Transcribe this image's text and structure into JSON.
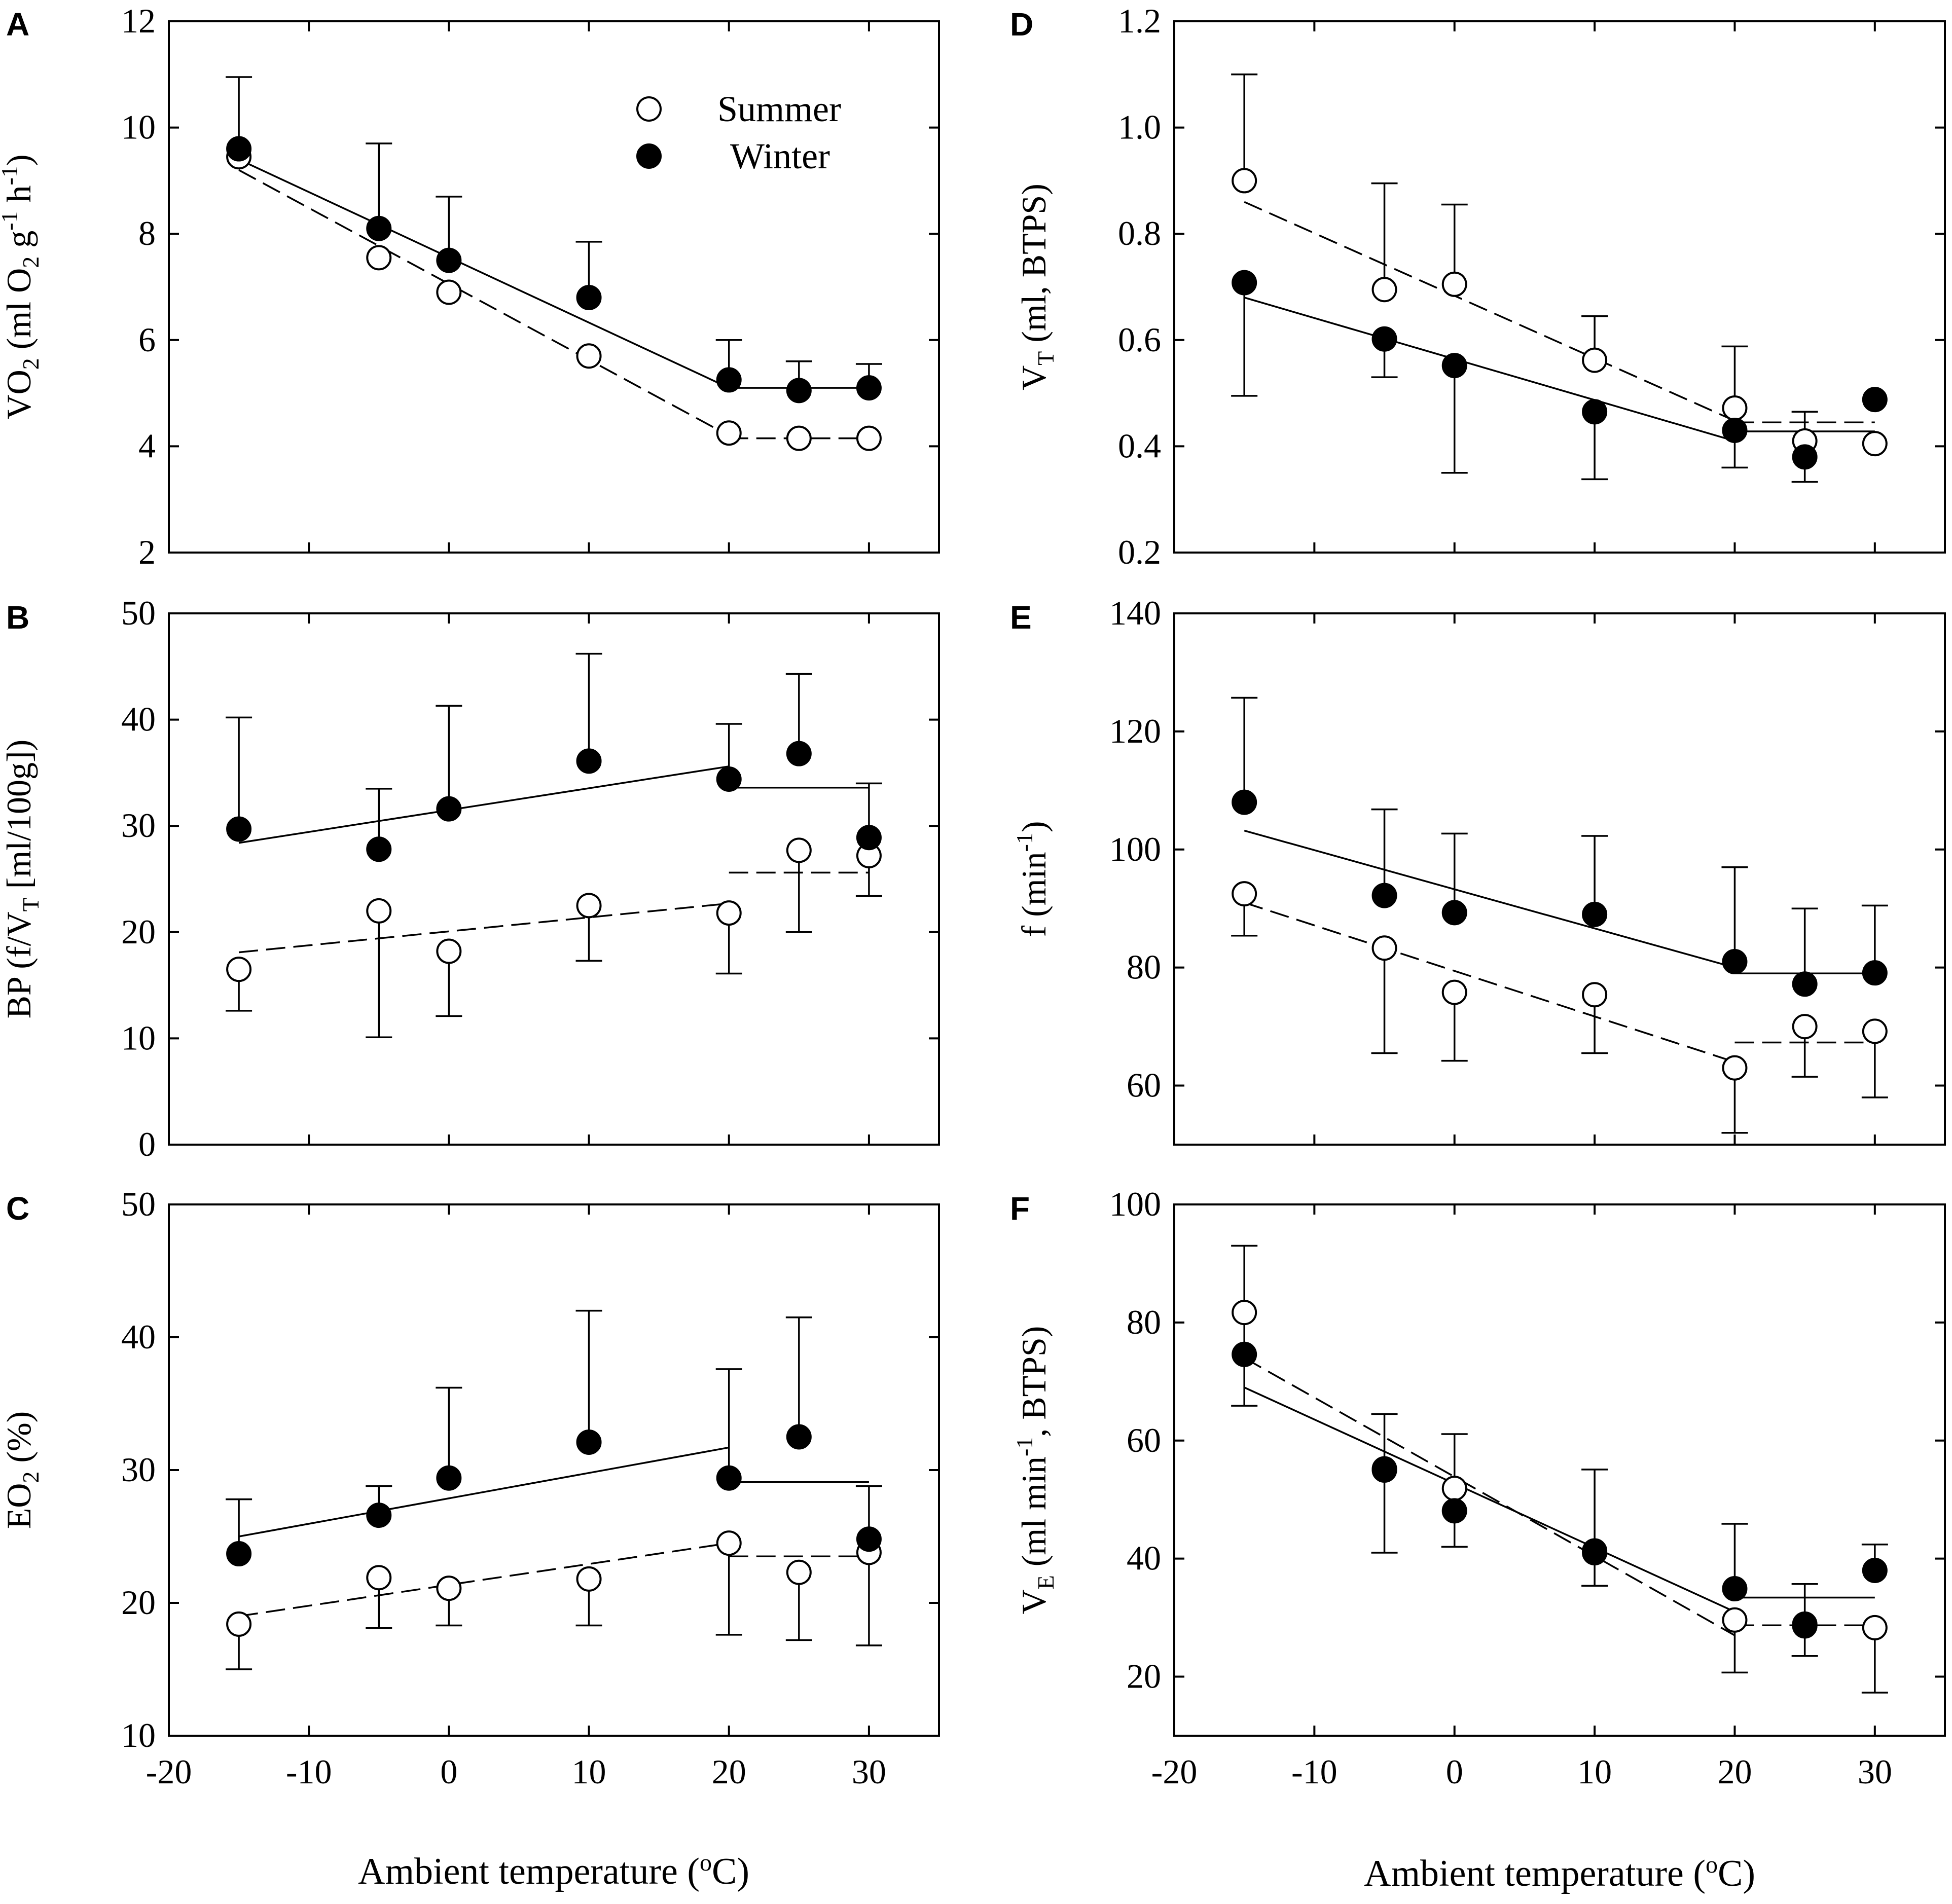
{
  "figure": {
    "xlabel_left": "Ambient temperature (",
    "xlabel_right": "Ambient temperature (",
    "degree_sup": "o",
    "degree_unit": "C)",
    "legend": {
      "summer": "Summer",
      "winter": "Winter"
    }
  },
  "colors": {
    "ink": "#000000",
    "background": "#ffffff"
  },
  "chart_data": [
    {
      "id": "A",
      "type": "scatter",
      "ylabel": {
        "pre": "VO",
        "sub1": "2",
        "mid": "  (ml O",
        "sub2": "2",
        "mid2": " g",
        "sup1": "-1",
        "mid3": " h",
        "sup2": "-1",
        "post": ")"
      },
      "ylim": [
        2,
        12
      ],
      "yticks": [
        2,
        4,
        6,
        8,
        10,
        12
      ],
      "ytick_labels": [
        "2",
        "4",
        "6",
        "8",
        "10",
        "12"
      ],
      "xlim": [
        -20,
        35
      ],
      "xticks": [
        -20,
        -10,
        0,
        10,
        20,
        30
      ],
      "xtick_labels": [
        "-20",
        "-10",
        "0",
        "10",
        "20",
        "30"
      ],
      "show_xtick_labels": false,
      "legend": true,
      "x": [
        -15,
        -5,
        0,
        10,
        20,
        25,
        30
      ],
      "series": [
        {
          "name": "Summer",
          "marker": "open",
          "values": [
            9.45,
            7.55,
            6.9,
            5.7,
            4.25,
            4.15,
            4.15
          ],
          "err_up": [
            null,
            null,
            null,
            null,
            null,
            null,
            null
          ],
          "err_down": [
            null,
            null,
            null,
            null,
            null,
            null,
            null
          ],
          "fits": [
            {
              "style": "dashed",
              "x": [
                -15,
                20
              ],
              "y": [
                9.2,
                4.2
              ]
            },
            {
              "style": "dashed",
              "x": [
                20,
                30
              ],
              "y": [
                4.15,
                4.15
              ]
            }
          ]
        },
        {
          "name": "Winter",
          "marker": "filled",
          "values": [
            9.6,
            8.1,
            7.5,
            6.8,
            5.25,
            5.05,
            5.1
          ],
          "err_up": [
            10.95,
            9.7,
            8.7,
            7.85,
            6.0,
            5.6,
            5.55
          ],
          "err_down": [
            null,
            null,
            null,
            null,
            null,
            null,
            null
          ],
          "fits": [
            {
              "style": "solid",
              "x": [
                -15,
                20
              ],
              "y": [
                9.4,
                5.1
              ]
            },
            {
              "style": "solid",
              "x": [
                20,
                30
              ],
              "y": [
                5.1,
                5.1
              ]
            }
          ]
        }
      ]
    },
    {
      "id": "B",
      "type": "scatter",
      "ylabel": {
        "pre": "BP (f/V",
        "sub1": "T",
        "mid": " [ml/100g])",
        "sub2": "",
        "mid2": "",
        "sup1": "",
        "mid3": "",
        "sup2": "",
        "post": ""
      },
      "ylim": [
        0,
        50
      ],
      "yticks": [
        0,
        10,
        20,
        30,
        40,
        50
      ],
      "ytick_labels": [
        "0",
        "10",
        "20",
        "30",
        "40",
        "50"
      ],
      "xlim": [
        -20,
        35
      ],
      "xticks": [
        -20,
        -10,
        0,
        10,
        20,
        30
      ],
      "xtick_labels": [
        "-20",
        "-10",
        "0",
        "10",
        "20",
        "30"
      ],
      "show_xtick_labels": false,
      "legend": false,
      "x": [
        -15,
        -5,
        0,
        10,
        20,
        25,
        30
      ],
      "series": [
        {
          "name": "Summer",
          "marker": "open",
          "values": [
            16.5,
            22.0,
            18.2,
            22.5,
            21.8,
            27.7,
            27.2
          ],
          "err_up": [
            null,
            null,
            null,
            null,
            null,
            null,
            null
          ],
          "err_down": [
            12.6,
            10.1,
            12.1,
            17.3,
            16.1,
            20.0,
            23.4
          ],
          "fits": [
            {
              "style": "dashed",
              "x": [
                -15,
                20
              ],
              "y": [
                18.1,
                22.7
              ]
            },
            {
              "style": "dashed",
              "x": [
                20,
                30
              ],
              "y": [
                25.6,
                25.6
              ]
            }
          ]
        },
        {
          "name": "Winter",
          "marker": "filled",
          "values": [
            29.7,
            27.8,
            31.6,
            36.1,
            34.4,
            36.8,
            28.9
          ],
          "err_up": [
            40.2,
            33.5,
            41.3,
            46.2,
            39.6,
            44.3,
            34.0
          ],
          "err_down": [
            null,
            null,
            null,
            null,
            null,
            null,
            null
          ],
          "fits": [
            {
              "style": "solid",
              "x": [
                -15,
                20
              ],
              "y": [
                28.4,
                35.6
              ]
            },
            {
              "style": "solid",
              "x": [
                20,
                30
              ],
              "y": [
                33.6,
                33.6
              ]
            }
          ]
        }
      ]
    },
    {
      "id": "C",
      "type": "scatter",
      "ylabel": {
        "pre": "EO",
        "sub1": "2",
        "mid": " (%)",
        "sub2": "",
        "mid2": "",
        "sup1": "",
        "mid3": "",
        "sup2": "",
        "post": ""
      },
      "ylim": [
        10,
        50
      ],
      "yticks": [
        10,
        20,
        30,
        40,
        50
      ],
      "ytick_labels": [
        "10",
        "20",
        "30",
        "40",
        "50"
      ],
      "xlim": [
        -20,
        35
      ],
      "xticks": [
        -20,
        -10,
        0,
        10,
        20,
        30
      ],
      "xtick_labels": [
        "-20",
        "-10",
        "0",
        "10",
        "20",
        "30"
      ],
      "show_xtick_labels": true,
      "legend": false,
      "x": [
        -15,
        -5,
        0,
        10,
        20,
        25,
        30
      ],
      "series": [
        {
          "name": "Summer",
          "marker": "open",
          "values": [
            18.4,
            21.9,
            21.1,
            21.8,
            24.5,
            22.3,
            23.8
          ],
          "err_up": [
            null,
            null,
            null,
            null,
            null,
            null,
            null
          ],
          "err_down": [
            15.0,
            18.1,
            18.3,
            18.3,
            17.6,
            17.2,
            16.8
          ],
          "fits": [
            {
              "style": "dashed",
              "x": [
                -15,
                20
              ],
              "y": [
                19.0,
                24.5
              ]
            },
            {
              "style": "dashed",
              "x": [
                20,
                30
              ],
              "y": [
                23.5,
                23.5
              ]
            }
          ]
        },
        {
          "name": "Winter",
          "marker": "filled",
          "values": [
            23.7,
            26.6,
            29.4,
            32.1,
            29.4,
            32.5,
            24.8
          ],
          "err_up": [
            27.8,
            28.8,
            36.2,
            42.0,
            37.6,
            41.5,
            28.8
          ],
          "err_down": [
            null,
            null,
            null,
            null,
            null,
            null,
            null
          ],
          "fits": [
            {
              "style": "solid",
              "x": [
                -15,
                20
              ],
              "y": [
                25.0,
                31.7
              ]
            },
            {
              "style": "solid",
              "x": [
                20,
                30
              ],
              "y": [
                29.1,
                29.1
              ]
            }
          ]
        }
      ]
    },
    {
      "id": "D",
      "type": "scatter",
      "ylabel": {
        "pre": "V",
        "sub1": "T",
        "mid": " (ml, BTPS)",
        "sub2": "",
        "mid2": "",
        "sup1": "",
        "mid3": "",
        "sup2": "",
        "post": ""
      },
      "ylim": [
        0.2,
        1.2
      ],
      "yticks": [
        0.2,
        0.4,
        0.6,
        0.8,
        1.0,
        1.2
      ],
      "ytick_labels": [
        "0.2",
        "0.4",
        "0.6",
        "0.8",
        "1.0",
        "1.2"
      ],
      "xlim": [
        -20,
        35
      ],
      "xticks": [
        -20,
        -10,
        0,
        10,
        20,
        30
      ],
      "xtick_labels": [
        "-20",
        "-10",
        "0",
        "10",
        "20",
        "30"
      ],
      "show_xtick_labels": false,
      "legend": false,
      "x": [
        -15,
        -5,
        0,
        10,
        20,
        25,
        30
      ],
      "series": [
        {
          "name": "Summer",
          "marker": "open",
          "values": [
            0.9,
            0.695,
            0.705,
            0.562,
            0.472,
            0.41,
            0.405
          ],
          "err_up": [
            1.1,
            0.895,
            0.855,
            0.645,
            0.588,
            0.465,
            null
          ],
          "err_down": [
            null,
            null,
            null,
            null,
            null,
            null,
            null
          ],
          "fits": [
            {
              "style": "dashed",
              "x": [
                -15,
                20
              ],
              "y": [
                0.86,
                0.448
              ]
            },
            {
              "style": "dashed",
              "x": [
                20,
                30
              ],
              "y": [
                0.445,
                0.445
              ]
            }
          ]
        },
        {
          "name": "Winter",
          "marker": "filled",
          "values": [
            0.708,
            0.602,
            0.552,
            0.465,
            0.43,
            0.38,
            0.488
          ],
          "err_up": [
            null,
            null,
            null,
            null,
            null,
            null,
            null
          ],
          "err_down": [
            0.495,
            0.53,
            0.35,
            0.338,
            0.36,
            0.333,
            null
          ],
          "fits": [
            {
              "style": "solid",
              "x": [
                -15,
                20
              ],
              "y": [
                0.68,
                0.41
              ]
            },
            {
              "style": "solid",
              "x": [
                20,
                30
              ],
              "y": [
                0.428,
                0.428
              ]
            }
          ]
        }
      ]
    },
    {
      "id": "E",
      "type": "scatter",
      "ylabel": {
        "pre": "f (min",
        "sub1": "",
        "mid": "",
        "sub2": "",
        "mid2": "",
        "sup1": "-1",
        "mid3": ")",
        "sup2": "",
        "post": ""
      },
      "ylim": [
        50,
        140
      ],
      "yticks": [
        60,
        80,
        100,
        120,
        140
      ],
      "ytick_labels": [
        "60",
        "80",
        "100",
        "120",
        "140"
      ],
      "xlim": [
        -20,
        35
      ],
      "xticks": [
        -20,
        -10,
        0,
        10,
        20,
        30
      ],
      "xtick_labels": [
        "-20",
        "-10",
        "0",
        "10",
        "20",
        "30"
      ],
      "show_xtick_labels": false,
      "legend": false,
      "x": [
        -15,
        -5,
        0,
        10,
        20,
        25,
        30
      ],
      "series": [
        {
          "name": "Summer",
          "marker": "open",
          "values": [
            92.5,
            83.3,
            75.8,
            75.4,
            63.0,
            70.0,
            69.2
          ],
          "err_up": [
            null,
            null,
            null,
            null,
            null,
            null,
            null
          ],
          "err_down": [
            85.4,
            65.5,
            64.2,
            65.5,
            52.0,
            61.5,
            58.0
          ],
          "fits": [
            {
              "style": "dashed",
              "x": [
                -15,
                20
              ],
              "y": [
                91.0,
                64.0
              ]
            },
            {
              "style": "dashed",
              "x": [
                20,
                30
              ],
              "y": [
                67.3,
                67.3
              ]
            }
          ]
        },
        {
          "name": "Winter",
          "marker": "filled",
          "values": [
            108.0,
            92.2,
            89.3,
            89.0,
            81.0,
            77.2,
            79.1
          ],
          "err_up": [
            125.7,
            106.8,
            102.7,
            102.3,
            97.0,
            90.0,
            90.5
          ],
          "err_down": [
            null,
            null,
            null,
            null,
            null,
            null,
            null
          ],
          "fits": [
            {
              "style": "solid",
              "x": [
                -15,
                20
              ],
              "y": [
                103.2,
                80.0
              ]
            },
            {
              "style": "solid",
              "x": [
                20,
                30
              ],
              "y": [
                79.0,
                79.0
              ]
            }
          ]
        }
      ]
    },
    {
      "id": "F",
      "type": "scatter",
      "ylabel": {
        "pre": "V",
        "sub1": "E",
        "mid": "  (ml min",
        "sub2": "",
        "mid2": "",
        "sup1": "-1",
        "mid3": ", BTPS)",
        "sup2": "",
        "post": ""
      },
      "ylim": [
        10,
        100
      ],
      "yticks": [
        20,
        40,
        60,
        80,
        100
      ],
      "ytick_labels": [
        "20",
        "40",
        "60",
        "80",
        "100"
      ],
      "xlim": [
        -20,
        35
      ],
      "xticks": [
        -20,
        -10,
        0,
        10,
        20,
        30
      ],
      "xtick_labels": [
        "-20",
        "-10",
        "0",
        "10",
        "20",
        "30"
      ],
      "show_xtick_labels": true,
      "legend": false,
      "x": [
        -15,
        -5,
        0,
        10,
        20,
        25,
        30
      ],
      "series": [
        {
          "name": "Summer",
          "marker": "open",
          "values": [
            81.7,
            55.2,
            51.9,
            41.3,
            29.6,
            28.6,
            28.3
          ],
          "err_up": [
            null,
            null,
            61.1,
            null,
            null,
            null,
            null
          ],
          "err_down": [
            null,
            null,
            null,
            35.4,
            20.7,
            null,
            17.3
          ],
          "fits": [
            {
              "style": "dashed",
              "x": [
                -15,
                20
              ],
              "y": [
                74.0,
                27.0
              ]
            },
            {
              "style": "dashed",
              "x": [
                20,
                30
              ],
              "y": [
                28.7,
                28.7
              ]
            }
          ]
        },
        {
          "name": "Winter",
          "marker": "filled",
          "values": [
            74.6,
            55.0,
            48.1,
            41.0,
            34.9,
            28.9,
            38.0
          ],
          "err_up": [
            93.0,
            64.5,
            null,
            55.1,
            45.9,
            35.7,
            42.4
          ],
          "err_down": [
            65.9,
            41.0,
            42.0,
            null,
            null,
            23.5,
            null
          ],
          "fits": [
            {
              "style": "solid",
              "x": [
                -15,
                20
              ],
              "y": [
                69.0,
                31.0
              ]
            },
            {
              "style": "solid",
              "x": [
                20,
                30
              ],
              "y": [
                33.4,
                33.4
              ]
            }
          ]
        }
      ]
    }
  ]
}
